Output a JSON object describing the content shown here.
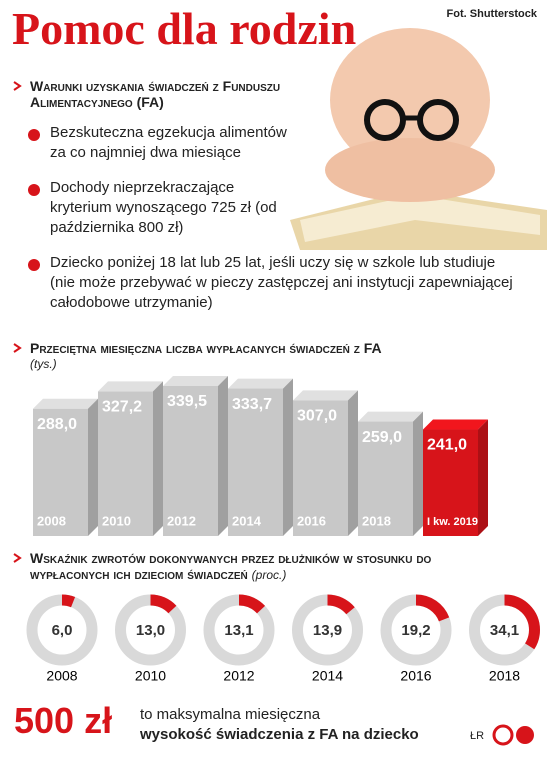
{
  "header": {
    "title": "Pomoc dla rodzin",
    "credit": "Fot. Shutterstock"
  },
  "conditions": {
    "heading": "Warunki uzyskania świadczeń z Funduszu Alimentacyjnego (FA)",
    "items": [
      "Bezskuteczna egzekucja alimentów za co najmniej dwa miesiące",
      "Dochody nieprzekraczające kryterium wynoszącego 725 zł (od października 800 zł)",
      "Dziecko poniżej 18 lat lub 25 lat, jeśli uczy się w szkole lub studiuje (nie może przebywać w pieczy zastępczej ani instytucji zapewniającej całodobowe utrzymanie)"
    ]
  },
  "chart_data": [
    {
      "type": "bar",
      "title": "Przeciętna miesięczna liczba wypłacanych świadczeń z FA",
      "subtitle": "(tys.)",
      "categories": [
        "2008",
        "2010",
        "2012",
        "2014",
        "2016",
        "2018",
        "I kw. 2019"
      ],
      "values": [
        288.0,
        327.2,
        339.5,
        333.7,
        307.0,
        259.0,
        241.0
      ],
      "value_labels": [
        "288,0",
        "327,2",
        "339,5",
        "333,7",
        "307,0",
        "259,0",
        "241,0"
      ],
      "colors": [
        "#c8c8c8",
        "#c8c8c8",
        "#c8c8c8",
        "#c8c8c8",
        "#c8c8c8",
        "#c8c8c8",
        "#d7141a"
      ]
    },
    {
      "type": "donut",
      "title": "Wskaźnik zwrotów dokonywanych przez dłużników w stosunku do wypłaconych ich dzieciom świadczeń",
      "subtitle": "(proc.)",
      "categories": [
        "2008",
        "2010",
        "2012",
        "2014",
        "2016",
        "2018"
      ],
      "values": [
        6.0,
        13.0,
        13.1,
        13.9,
        19.2,
        34.1
      ],
      "value_labels": [
        "6,0",
        "13,0",
        "13,1",
        "13,9",
        "19,2",
        "34,1"
      ],
      "color": "#d7141a",
      "track_color": "#d9d9d9"
    }
  ],
  "footer": {
    "amount": "500 zł",
    "line1": "to maksymalna miesięczna",
    "line2": "wysokość świadczenia z FA na dziecko",
    "author": "ŁR"
  }
}
